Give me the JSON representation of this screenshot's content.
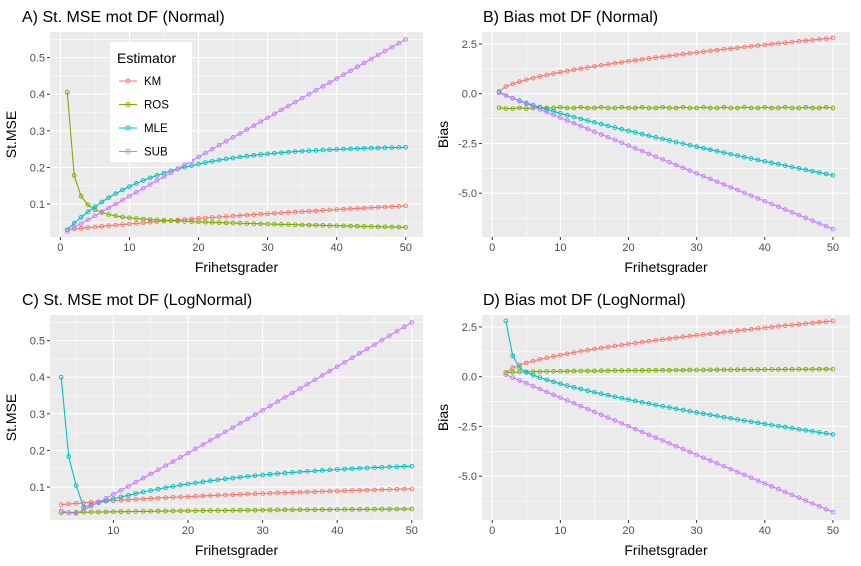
{
  "colors": {
    "KM": "#F8766D",
    "ROS": "#7CAE00",
    "MLE": "#00BFC4",
    "SUB": "#C77CFF",
    "panel_bg": "#EBEBEB",
    "grid": "#FFFFFF"
  },
  "legend": {
    "title": "Estimator",
    "entries": [
      "KM",
      "ROS",
      "MLE",
      "SUB"
    ],
    "placement": "inside top-left of panel A"
  },
  "chart_data": [
    {
      "id": "A",
      "type": "line",
      "title": "A) St. MSE mot DF (Normal)",
      "xlabel": "Frihetsgrader",
      "ylabel": "St.MSE",
      "xlim": [
        -1.5,
        52.5
      ],
      "ylim": [
        0.01,
        0.57
      ],
      "xticks": [
        0,
        10,
        20,
        30,
        40,
        50
      ],
      "yticks": [
        0.1,
        0.2,
        0.3,
        0.4,
        0.5
      ],
      "ytick_labels": [
        "0.1",
        "0.2",
        "0.3",
        "0.4",
        "0.5"
      ],
      "x": [
        1,
        50
      ],
      "series": [
        {
          "name": "KM",
          "fn": "log",
          "a": 0.03,
          "b": 0.095,
          "k": 0.02
        },
        {
          "name": "ROS",
          "fn": "recip",
          "start": 0.405,
          "limit": 0.055,
          "p": 1.5,
          "tail": 0.0004
        },
        {
          "name": "MLE",
          "fn": "sat",
          "a": 0.03,
          "b": 0.255,
          "k": 0.08
        },
        {
          "name": "SUB",
          "fn": "linear",
          "a": 0.025,
          "b": 0.55
        }
      ]
    },
    {
      "id": "B",
      "type": "line",
      "title": "B) Bias mot DF (Normal)",
      "xlabel": "Frihetsgrader",
      "ylabel": "Bias",
      "xlim": [
        -1.5,
        52.5
      ],
      "ylim": [
        -7.2,
        3.1
      ],
      "xticks": [
        0,
        10,
        20,
        30,
        40,
        50
      ],
      "yticks": [
        2.5,
        0,
        -2.5,
        -5
      ],
      "ytick_labels": [
        "2.5",
        "0.0",
        "-2.5",
        "-5.0"
      ],
      "x": [
        1,
        50
      ],
      "series": [
        {
          "name": "KM",
          "fn": "pow",
          "a": 0.1,
          "b": 2.8,
          "p": 0.6
        },
        {
          "name": "ROS",
          "fn": "flat",
          "a": -0.65,
          "b": -0.75,
          "v": -0.72
        },
        {
          "name": "MLE",
          "fn": "pow",
          "a": 0.1,
          "b": -4.1,
          "p": 0.8
        },
        {
          "name": "SUB",
          "fn": "pow",
          "a": 0.05,
          "b": -6.8,
          "p": 1.0
        }
      ]
    },
    {
      "id": "C",
      "type": "line",
      "title": "C) St. MSE mot DF (LogNormal)",
      "xlabel": "Frihetsgrader",
      "ylabel": "St.MSE",
      "xlim": [
        1.5,
        51.5
      ],
      "ylim": [
        0.01,
        0.57
      ],
      "xticks": [
        10,
        20,
        30,
        40,
        50
      ],
      "yticks": [
        0.1,
        0.2,
        0.3,
        0.4,
        0.5
      ],
      "ytick_labels": [
        "0.1",
        "0.2",
        "0.3",
        "0.4",
        "0.5"
      ],
      "x": [
        3,
        50
      ],
      "series": [
        {
          "name": "KM",
          "fn": "log",
          "a": 0.052,
          "b": 0.095,
          "k": 0.05
        },
        {
          "name": "ROS",
          "fn": "log",
          "a": 0.03,
          "b": 0.04,
          "k": 0.05
        },
        {
          "name": "MLE",
          "fn": "vshape",
          "start": 0.4,
          "min": 0.045,
          "minx": 6,
          "end": 0.157
        },
        {
          "name": "SUB",
          "fn": "vshape",
          "start": 0.035,
          "min": 0.028,
          "minx": 5,
          "end": 0.55
        }
      ]
    },
    {
      "id": "D",
      "type": "line",
      "title": "D) Bias mot DF (LogNormal)",
      "xlabel": "Frihetsgrader",
      "ylabel": "Bias",
      "xlim": [
        -1.5,
        52.5
      ],
      "ylim": [
        -7.2,
        3.1
      ],
      "xticks": [
        0,
        10,
        20,
        30,
        40,
        50
      ],
      "yticks": [
        2.5,
        0,
        -2.5,
        -5
      ],
      "ytick_labels": [
        "2.5",
        "0.0",
        "-2.5",
        "-5.0"
      ],
      "x": [
        2,
        50
      ],
      "series": [
        {
          "name": "KM",
          "fn": "pow",
          "a": 0.2,
          "b": 2.8,
          "p": 0.6
        },
        {
          "name": "ROS",
          "fn": "pow",
          "a": 0.2,
          "b": 0.38,
          "p": 0.5
        },
        {
          "name": "MLE",
          "fn": "spike",
          "start": 2.8,
          "next": 1.05,
          "a3": 0.45,
          "end": -2.9
        },
        {
          "name": "SUB",
          "fn": "pow",
          "a": 0.1,
          "b": -6.8,
          "p": 1.0
        }
      ]
    }
  ]
}
